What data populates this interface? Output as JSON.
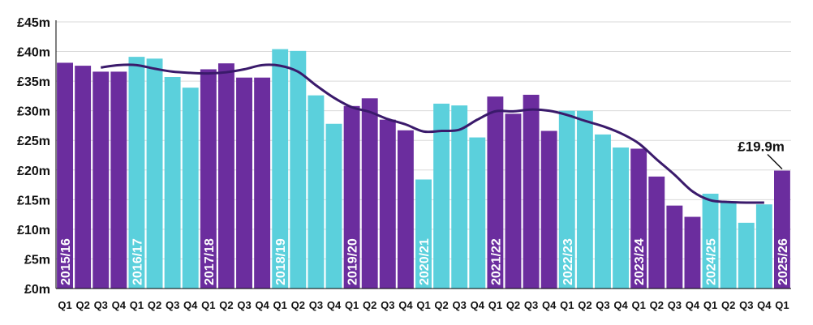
{
  "chart_data": {
    "type": "bar",
    "title": "",
    "xlabel": "",
    "ylabel": "",
    "ylim": [
      0,
      45
    ],
    "yticks": [
      0,
      5,
      10,
      15,
      20,
      25,
      30,
      35,
      40,
      45
    ],
    "ytick_labels": [
      "£0m",
      "£5m",
      "£10m",
      "£15m",
      "£20m",
      "£25m",
      "£30m",
      "£35m",
      "£40m",
      "£45m"
    ],
    "grid": true,
    "categories": [
      "Q1",
      "Q2",
      "Q3",
      "Q4",
      "Q1",
      "Q2",
      "Q3",
      "Q4",
      "Q1",
      "Q2",
      "Q3",
      "Q4",
      "Q1",
      "Q2",
      "Q3",
      "Q4",
      "Q1",
      "Q2",
      "Q3",
      "Q4",
      "Q1",
      "Q2",
      "Q3",
      "Q4",
      "Q1",
      "Q2",
      "Q3",
      "Q4",
      "Q1",
      "Q2",
      "Q3",
      "Q4",
      "Q1",
      "Q2",
      "Q3",
      "Q4",
      "Q1",
      "Q2",
      "Q3",
      "Q4",
      "Q1"
    ],
    "years": [
      "2015/16",
      "2016/17",
      "2017/18",
      "2018/19",
      "2019/20",
      "2020/21",
      "2021/22",
      "2022/23",
      "2023/24",
      "2024/25",
      "2025/26"
    ],
    "colors": {
      "odd_year": "#6b2d9e",
      "even_year": "#5bd0dc",
      "trend": "#3a1a6b",
      "grid": "#d9d9d9",
      "axis": "#000000"
    },
    "values": [
      38.1,
      37.6,
      36.6,
      36.6,
      39.1,
      38.8,
      35.7,
      33.9,
      37.0,
      38.0,
      35.6,
      35.6,
      40.4,
      40.1,
      32.6,
      27.8,
      30.8,
      32.1,
      28.5,
      26.7,
      18.4,
      31.2,
      30.9,
      25.5,
      32.4,
      29.5,
      32.7,
      26.6,
      30.0,
      30.0,
      26.0,
      23.8,
      23.6,
      18.9,
      14.0,
      12.1,
      16.0,
      14.5,
      11.1,
      14.2,
      19.9
    ],
    "trend": [
      null,
      null,
      37.3,
      37.7,
      37.7,
      37.1,
      36.6,
      36.4,
      36.3,
      36.5,
      37.0,
      37.7,
      37.6,
      36.6,
      34.3,
      32.2,
      30.6,
      29.8,
      28.6,
      27.7,
      26.5,
      26.6,
      26.8,
      28.5,
      29.9,
      29.9,
      30.2,
      30.0,
      29.3,
      28.3,
      27.4,
      26.2,
      24.5,
      21.8,
      19.2,
      16.4,
      14.9,
      14.6,
      14.5,
      14.5,
      null
    ],
    "annotations": [
      {
        "index": 40,
        "text": "£19.9m"
      }
    ]
  }
}
